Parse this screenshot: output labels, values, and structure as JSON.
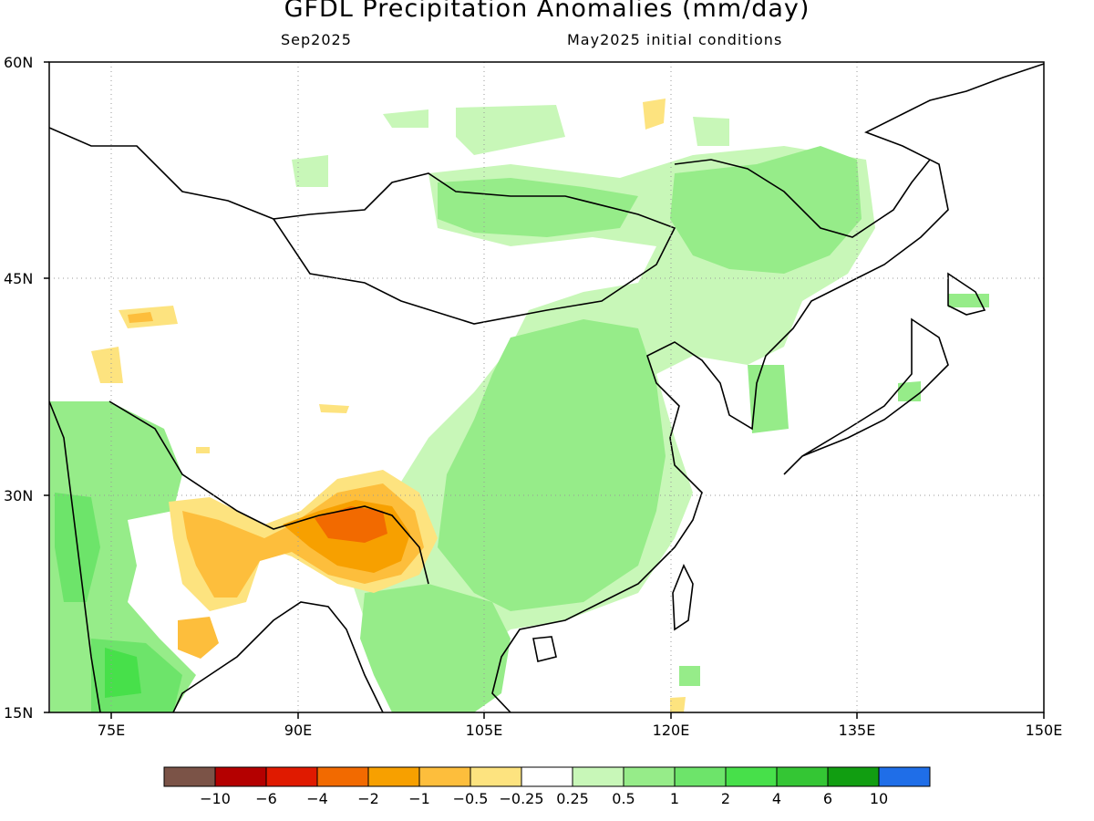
{
  "title": "GFDL Precipitation Anomalies (mm/day)",
  "subtitle_left": "Sep2025",
  "subtitle_right": "May2025 initial conditions",
  "map": {
    "lon_range": [
      70,
      150
    ],
    "lat_range": [
      15,
      60
    ],
    "lat_labels": [
      "60N",
      "45N",
      "30N",
      "15N"
    ],
    "lon_labels": [
      "75E",
      "90E",
      "105E",
      "120E",
      "135E",
      "150E"
    ],
    "gridlines": "dotted"
  },
  "colorbar": {
    "colors": [
      "#7b5347",
      "#b40000",
      "#e01a00",
      "#f26a00",
      "#f7a000",
      "#fdbe3c",
      "#fde37f",
      "#ffffff",
      "#c8f7b8",
      "#96ec89",
      "#6de46a",
      "#47e04a",
      "#34c634",
      "#119e11",
      "#1f6ee8"
    ],
    "labels": [
      "−10",
      "−6",
      "−4",
      "−2",
      "−1",
      "−0.5",
      "−0.25",
      "0.25",
      "0.5",
      "1",
      "2",
      "4",
      "6",
      "10"
    ]
  },
  "anomaly_regions": {
    "wet_light": "#c8f7b8",
    "wet_mid": "#96ec89",
    "wet_strong": "#6de46a",
    "wet_heavy": "#47e04a",
    "dry_light": "#fde37f",
    "dry_mid": "#fdbe3c",
    "dry_strong": "#f7a000",
    "dry_heavy": "#f26a00"
  }
}
